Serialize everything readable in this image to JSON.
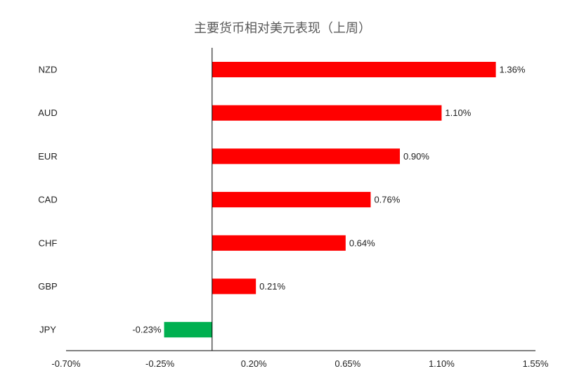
{
  "chart_data": {
    "type": "bar",
    "orientation": "horizontal",
    "title": "主要货币相对美元表现（上周）",
    "xlabel": "",
    "ylabel": "",
    "categories": [
      "NZD",
      "AUD",
      "EUR",
      "CAD",
      "CHF",
      "GBP",
      "JPY"
    ],
    "values": [
      1.36,
      1.1,
      0.9,
      0.76,
      0.64,
      0.21,
      -0.23
    ],
    "data_labels": [
      "1.36%",
      "1.10%",
      "0.90%",
      "0.76%",
      "0.64%",
      "0.21%",
      "-0.23%"
    ],
    "xlim": [
      -0.7,
      1.55
    ],
    "x_ticks": [
      -0.7,
      -0.25,
      0.2,
      0.65,
      1.1,
      1.55
    ],
    "x_tick_labels": [
      "-0.70%",
      "-0.25%",
      "0.20%",
      "0.65%",
      "1.10%",
      "1.55%"
    ],
    "grid": false,
    "legend": "none",
    "colors": {
      "positive": "#ff0000",
      "negative": "#00b050",
      "axis": "#000000",
      "title": "#595959"
    }
  }
}
